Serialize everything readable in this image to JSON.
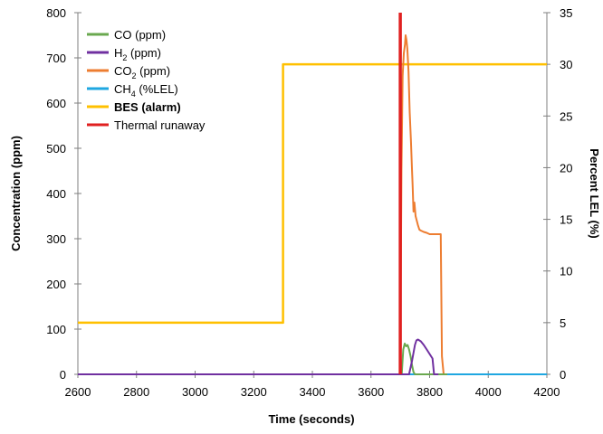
{
  "chart_data": {
    "type": "line",
    "xlabel": "Time (seconds)",
    "ylabel_left": "Concentration (ppm)",
    "ylabel_right": "Percent LEL (%)",
    "xlim": [
      2600,
      4200
    ],
    "ylim_left": [
      0,
      800
    ],
    "ylim_right": [
      0,
      35
    ],
    "x_ticks": [
      2600,
      2800,
      3000,
      3200,
      3400,
      3600,
      3800,
      4000,
      4200
    ],
    "y_left_ticks": [
      0,
      100,
      200,
      300,
      400,
      500,
      600,
      700,
      800
    ],
    "y_right_ticks": [
      0,
      5,
      10,
      15,
      20,
      25,
      30,
      35
    ],
    "grid": false,
    "legend_position": "top-left",
    "series": [
      {
        "name": "CO (ppm)",
        "axis": "left",
        "color": "#6aa84f",
        "x": [
          2600,
          3700,
          3705,
          3710,
          3715,
          3720,
          3725,
          3730,
          3735,
          3740,
          3745,
          3750,
          3760,
          3800,
          3860
        ],
        "y": [
          0,
          0,
          0,
          55,
          68,
          62,
          65,
          55,
          40,
          20,
          5,
          0,
          0,
          0,
          0
        ]
      },
      {
        "name": "H2 (ppm)",
        "axis": "left",
        "color": "#7030a0",
        "x": [
          2600,
          3720,
          3730,
          3740,
          3750,
          3755,
          3760,
          3770,
          3780,
          3790,
          3800,
          3810,
          3815,
          3830
        ],
        "y": [
          0,
          0,
          0,
          30,
          65,
          75,
          77,
          73,
          65,
          55,
          45,
          35,
          0,
          0
        ]
      },
      {
        "name": "CO2 (ppm)",
        "axis": "left",
        "color": "#ed7d31",
        "x": [
          2600,
          3700,
          3704,
          3708,
          3712,
          3716,
          3718,
          3721,
          3724,
          3728,
          3732,
          3736,
          3740,
          3742,
          3745,
          3748,
          3752,
          3756,
          3760,
          3765,
          3770,
          3780,
          3790,
          3800,
          3810,
          3820,
          3835,
          3838,
          3842,
          3848,
          3860
        ],
        "y": [
          0,
          0,
          450,
          660,
          710,
          730,
          750,
          740,
          720,
          670,
          580,
          520,
          450,
          420,
          360,
          380,
          350,
          340,
          330,
          320,
          318,
          315,
          313,
          310,
          310,
          310,
          310,
          310,
          40,
          0,
          0
        ]
      },
      {
        "name": "CH4 (%LEL)",
        "axis": "right",
        "color": "#1fa7e1",
        "x": [
          2600,
          4200
        ],
        "y": [
          0,
          0
        ]
      },
      {
        "name": "BES (alarm)",
        "axis": "right",
        "color": "#ffc000",
        "x": [
          2600,
          3300,
          3300,
          4200
        ],
        "y": [
          5,
          5,
          30,
          30
        ]
      },
      {
        "name": "Thermal runaway",
        "axis": "left",
        "color": "#e02020",
        "x": [
          3700,
          3700
        ],
        "y": [
          0,
          800
        ]
      }
    ]
  },
  "legend": [
    {
      "base": "CO",
      "sub": "",
      "suffix": " (ppm)",
      "color": "#6aa84f",
      "bold": false
    },
    {
      "base": "H",
      "sub": "2",
      "suffix": " (ppm)",
      "color": "#7030a0",
      "bold": false
    },
    {
      "base": "CO",
      "sub": "2",
      "suffix": " (ppm)",
      "color": "#ed7d31",
      "bold": false
    },
    {
      "base": "CH",
      "sub": "4",
      "suffix": " (%LEL)",
      "color": "#1fa7e1",
      "bold": false
    },
    {
      "base": "BES (alarm)",
      "sub": "",
      "suffix": "",
      "color": "#ffc000",
      "bold": true
    },
    {
      "base": "Thermal runaway",
      "sub": "",
      "suffix": "",
      "color": "#e02020",
      "bold": false
    }
  ]
}
